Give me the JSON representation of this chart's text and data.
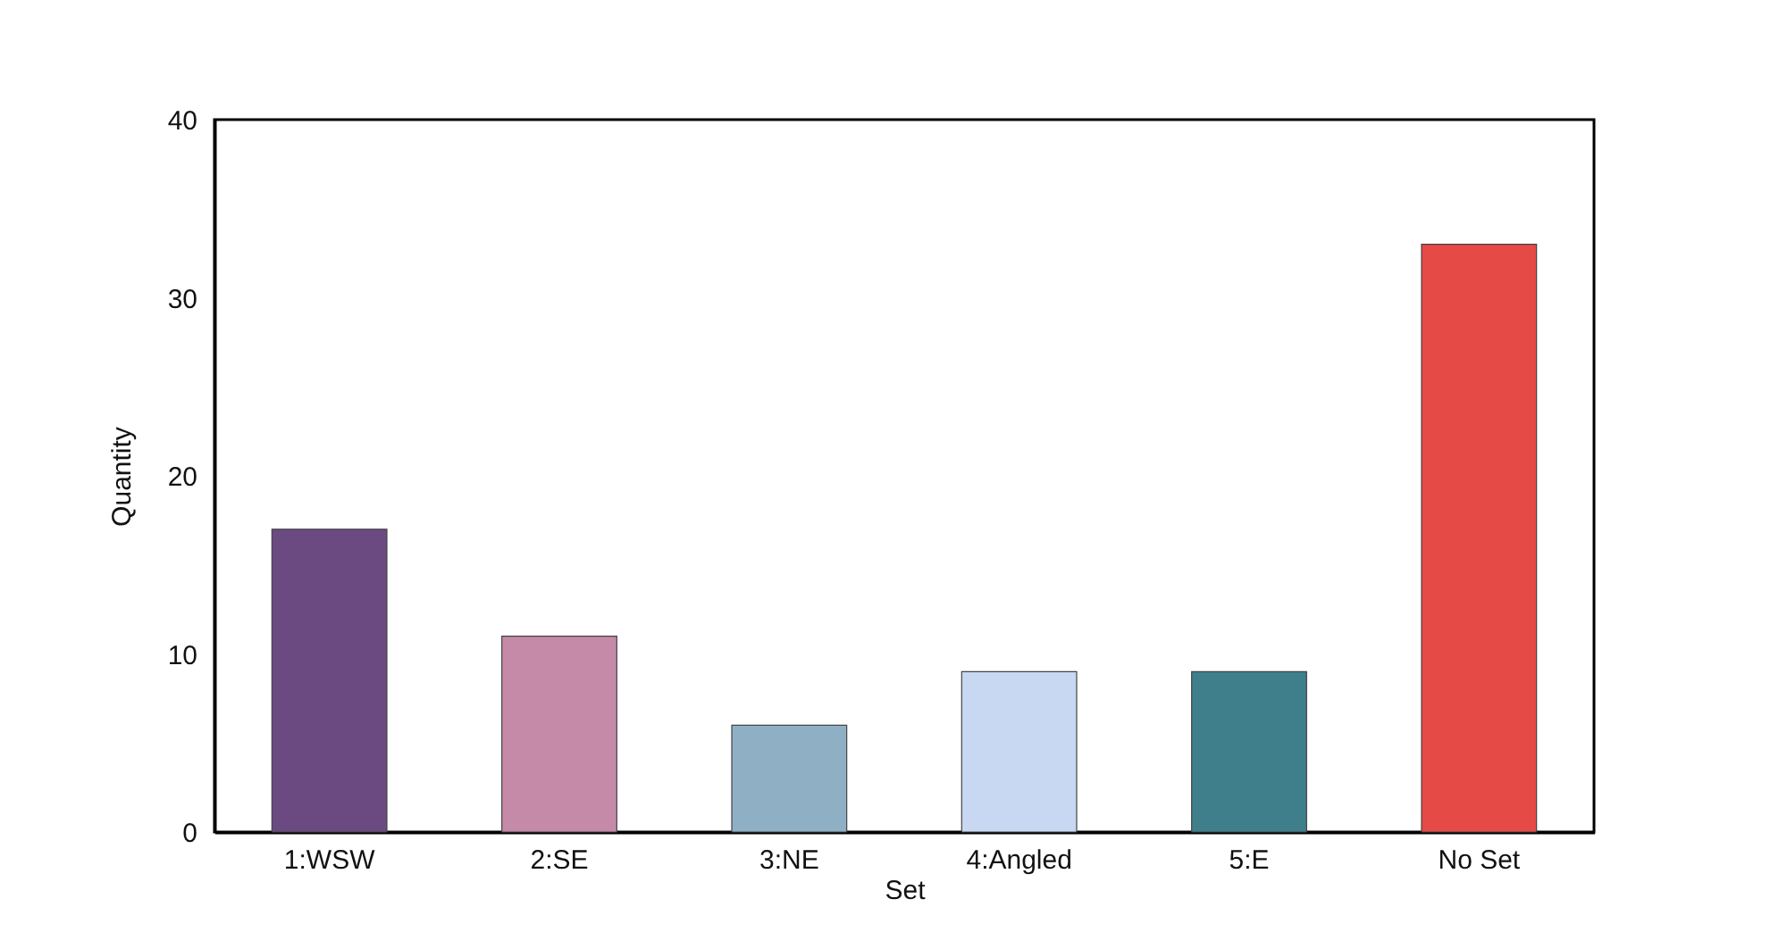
{
  "chart_data": {
    "type": "bar",
    "xlabel": "Set",
    "ylabel": "Quantity",
    "categories": [
      "1:WSW",
      "2:SE",
      "3:NE",
      "4:Angled",
      "5:E",
      "No Set"
    ],
    "values": [
      17,
      11,
      6,
      9,
      9,
      33
    ],
    "colors": [
      "#6b4a82",
      "#c48aa8",
      "#8fb0c4",
      "#c8d8f2",
      "#3f7f8c",
      "#e64a46"
    ],
    "ylim": [
      0,
      40
    ],
    "yticks": [
      0,
      10,
      20,
      30,
      40
    ],
    "grid": false
  }
}
